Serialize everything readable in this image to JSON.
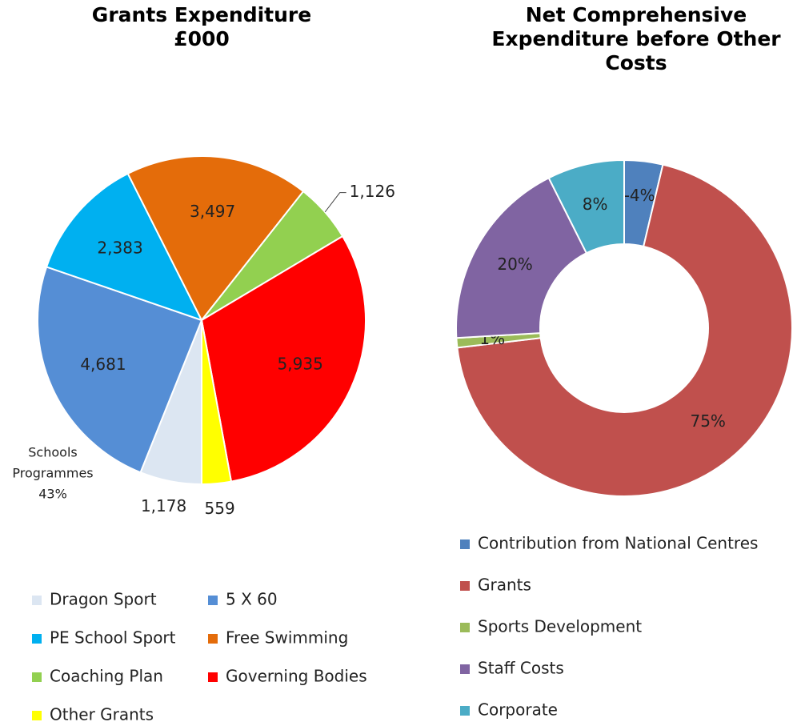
{
  "chart_data": [
    {
      "type": "pie",
      "title": [
        "Grants Expenditure",
        "£000"
      ],
      "categories": [
        "Dragon Sport",
        "5 X 60",
        "PE School Sport",
        "Free Swimming",
        "Coaching Plan",
        "Governing Bodies",
        "Other Grants"
      ],
      "values": [
        1178,
        4681,
        2383,
        3497,
        1126,
        5935,
        559
      ],
      "value_labels": [
        "1,178",
        "4,681",
        "2,383",
        "3,497",
        "1,126",
        "5,935",
        "559"
      ],
      "colors": [
        "#dce6f2",
        "#558ed5",
        "#00b0f0",
        "#e46c0a",
        "#92d050",
        "#ff0000",
        "#ffff00"
      ],
      "annotation": [
        "Schools",
        "Programmes",
        "43%"
      ]
    },
    {
      "type": "donut",
      "title": [
        "Net Comprehensive",
        "Expenditure before Other",
        "Costs"
      ],
      "categories": [
        "Contribution from National Centres",
        "Grants",
        "Sports Development",
        "Staff Costs",
        "Corporate"
      ],
      "values": [
        -4,
        75,
        1,
        20,
        8
      ],
      "value_labels": [
        "-4%",
        "75%",
        "1%",
        "20%",
        "8%"
      ],
      "colors": [
        "#4f81bd",
        "#c0504d",
        "#9bbb59",
        "#8064a2",
        "#4bacc6"
      ]
    }
  ]
}
